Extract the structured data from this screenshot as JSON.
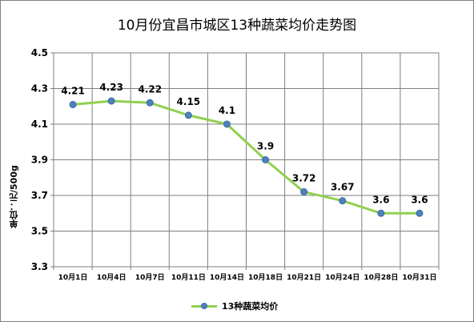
{
  "chart_data": {
    "type": "line",
    "title": "10月份宜昌市城区13种蔬菜均价走势图",
    "xlabel": "",
    "ylabel": "单位：元/500g",
    "ylim": [
      3.3,
      4.5
    ],
    "yticks": [
      "3.3",
      "3.5",
      "3.7",
      "3.9",
      "4.1",
      "4.3",
      "4.5"
    ],
    "categories": [
      "10月1日",
      "10月4日",
      "10月7日",
      "10月11日",
      "10月14日",
      "10月18日",
      "10月21日",
      "10月24日",
      "10月28日",
      "10月31日"
    ],
    "series": [
      {
        "name": "13种蔬菜均价",
        "values": [
          4.21,
          4.23,
          4.22,
          4.15,
          4.1,
          3.9,
          3.72,
          3.67,
          3.6,
          3.6
        ],
        "labels": [
          "4.21",
          "4.23",
          "4.22",
          "4.15",
          "4.1",
          "3.9",
          "3.72",
          "3.67",
          "3.6",
          "3.6"
        ],
        "line_color": "#92d050",
        "marker_color": "#4f81bd"
      }
    ],
    "grid": true,
    "legend_position": "bottom"
  }
}
